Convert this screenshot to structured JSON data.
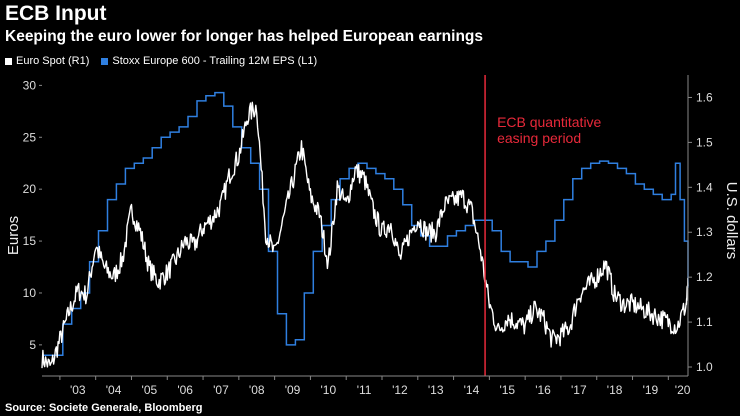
{
  "header": {
    "title": "ECB Input",
    "subtitle": "Keeping the euro lower for longer has helped European earnings"
  },
  "source": "Source: Societe Generale, Bloomberg",
  "colors": {
    "background": "#000000",
    "euro": "#ffffff",
    "stoxx": "#2f7fe0",
    "annotation": "#e8293a"
  },
  "chart_data": {
    "type": "line",
    "title": "ECB Input",
    "subtitle": "Keeping the euro lower for longer has helped European earnings",
    "legend": [
      {
        "name": "Euro Spot (R1)",
        "color": "#ffffff"
      },
      {
        "name": "Stoxx Europe 600 - Trailing 12M EPS (L1)",
        "color": "#2f7fe0"
      }
    ],
    "legend_position": "top-left",
    "x_ticks": [
      "'03",
      "'04",
      "'05",
      "'06",
      "'07",
      "'08",
      "'09",
      "'10",
      "'11",
      "'12",
      "'13",
      "'14",
      "'15",
      "'16",
      "'17",
      "'18",
      "'19",
      "'20"
    ],
    "x_range": [
      2002.5,
      2020.55
    ],
    "y_left": {
      "label": "Euros",
      "range": [
        2,
        31
      ],
      "ticks": [
        "5",
        "10",
        "15",
        "20",
        "25",
        "30"
      ]
    },
    "y_right": {
      "label": "U.S. dollars",
      "range": [
        0.98,
        1.65
      ],
      "ticks": [
        "1.0",
        "1.1",
        "1.2",
        "1.3",
        "1.4",
        "1.5",
        "1.6"
      ]
    },
    "annotation": {
      "x": 2014.88,
      "label_lines": [
        "ECB quantitative",
        "easing period"
      ]
    },
    "series": [
      {
        "name": "Euro Spot (R1)",
        "axis": "right",
        "x": [
          2002.5,
          2002.75,
          2003.0,
          2003.25,
          2003.5,
          2003.75,
          2004.0,
          2004.25,
          2004.5,
          2004.75,
          2005.0,
          2005.25,
          2005.5,
          2005.75,
          2006.0,
          2006.25,
          2006.5,
          2006.75,
          2007.0,
          2007.25,
          2007.5,
          2007.75,
          2008.0,
          2008.25,
          2008.5,
          2008.75,
          2009.0,
          2009.25,
          2009.5,
          2009.75,
          2010.0,
          2010.25,
          2010.5,
          2010.75,
          2011.0,
          2011.25,
          2011.5,
          2011.75,
          2012.0,
          2012.25,
          2012.5,
          2012.75,
          2013.0,
          2013.25,
          2013.5,
          2013.75,
          2014.0,
          2014.25,
          2014.5,
          2014.75,
          2015.0,
          2015.25,
          2015.5,
          2015.75,
          2016.0,
          2016.25,
          2016.5,
          2016.75,
          2017.0,
          2017.25,
          2017.5,
          2017.75,
          2018.0,
          2018.25,
          2018.5,
          2018.75,
          2019.0,
          2019.25,
          2019.5,
          2019.75,
          2020.0,
          2020.25,
          2020.5,
          2020.55
        ],
        "values": [
          1.02,
          1.0,
          1.06,
          1.12,
          1.17,
          1.16,
          1.27,
          1.22,
          1.2,
          1.24,
          1.35,
          1.3,
          1.22,
          1.19,
          1.21,
          1.24,
          1.28,
          1.27,
          1.31,
          1.33,
          1.36,
          1.43,
          1.47,
          1.56,
          1.58,
          1.3,
          1.25,
          1.33,
          1.41,
          1.49,
          1.38,
          1.34,
          1.23,
          1.4,
          1.36,
          1.44,
          1.42,
          1.35,
          1.3,
          1.32,
          1.24,
          1.29,
          1.33,
          1.3,
          1.3,
          1.36,
          1.37,
          1.38,
          1.35,
          1.26,
          1.14,
          1.08,
          1.11,
          1.1,
          1.09,
          1.13,
          1.11,
          1.06,
          1.07,
          1.09,
          1.16,
          1.18,
          1.2,
          1.23,
          1.16,
          1.14,
          1.14,
          1.13,
          1.12,
          1.11,
          1.1,
          1.09,
          1.14,
          1.18
        ]
      },
      {
        "name": "Stoxx Europe 600 - Trailing 12M EPS (L1)",
        "axis": "left",
        "x": [
          2002.5,
          2002.83,
          2003.08,
          2003.33,
          2003.58,
          2003.83,
          2004.08,
          2004.33,
          2004.58,
          2004.83,
          2005.08,
          2005.33,
          2005.58,
          2005.83,
          2006.08,
          2006.33,
          2006.58,
          2006.83,
          2007.08,
          2007.33,
          2007.58,
          2007.83,
          2008.08,
          2008.33,
          2008.58,
          2008.83,
          2009.08,
          2009.33,
          2009.58,
          2009.83,
          2010.08,
          2010.33,
          2010.58,
          2010.83,
          2011.08,
          2011.33,
          2011.58,
          2011.83,
          2012.08,
          2012.33,
          2012.58,
          2012.83,
          2013.08,
          2013.33,
          2013.58,
          2013.83,
          2014.08,
          2014.33,
          2014.58,
          2014.83,
          2015.08,
          2015.33,
          2015.58,
          2015.83,
          2016.08,
          2016.33,
          2016.58,
          2016.83,
          2017.08,
          2017.33,
          2017.58,
          2017.83,
          2018.08,
          2018.33,
          2018.58,
          2018.83,
          2019.08,
          2019.33,
          2019.58,
          2019.83,
          2020.08,
          2020.2,
          2020.33,
          2020.45,
          2020.55
        ],
        "values": [
          4.0,
          4.0,
          7.0,
          8.5,
          10.0,
          13.0,
          16.0,
          19.0,
          20.5,
          22.0,
          22.5,
          23.0,
          24.0,
          25.0,
          25.5,
          26.0,
          27.0,
          28.5,
          29.0,
          29.3,
          28.0,
          26.0,
          24.0,
          22.5,
          20.0,
          14.0,
          8.0,
          5.0,
          5.5,
          10.0,
          14.0,
          16.5,
          19.0,
          21.0,
          22.0,
          22.5,
          22.0,
          21.5,
          21.0,
          20.0,
          18.5,
          16.5,
          15.5,
          14.5,
          14.5,
          15.5,
          16.0,
          16.5,
          17.0,
          17.0,
          16.0,
          14.0,
          13.0,
          13.0,
          12.5,
          14.0,
          15.0,
          17.0,
          19.0,
          21.0,
          22.0,
          22.5,
          22.7,
          22.5,
          22.0,
          21.5,
          20.5,
          20.0,
          19.5,
          19.0,
          19.5,
          22.5,
          19.0,
          15.0,
          10.5
        ]
      }
    ]
  }
}
